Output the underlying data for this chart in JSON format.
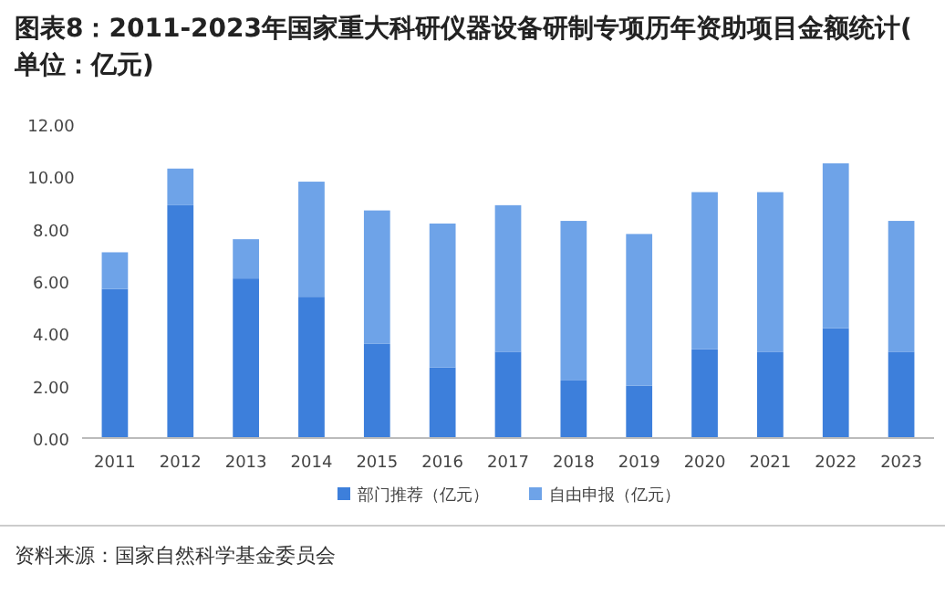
{
  "chart_data": {
    "type": "bar",
    "stacked": true,
    "title": "图表8：2011-2023年国家重大科研仪器设备研制专项历年资助项目金额统计(单位：亿元)",
    "categories": [
      "2011",
      "2012",
      "2013",
      "2014",
      "2015",
      "2016",
      "2017",
      "2018",
      "2019",
      "2020",
      "2021",
      "2022",
      "2023"
    ],
    "series": [
      {
        "name": "部门推荐（亿元）",
        "color": "#3d7fdb",
        "values": [
          5.7,
          8.9,
          6.1,
          5.4,
          3.6,
          2.7,
          3.3,
          2.2,
          2.0,
          3.4,
          3.3,
          4.2,
          3.3
        ]
      },
      {
        "name": "自由申报（亿元）",
        "color": "#6ea3e8",
        "values": [
          1.4,
          1.4,
          1.5,
          4.4,
          5.1,
          5.5,
          5.6,
          6.1,
          5.8,
          6.0,
          6.1,
          6.3,
          5.0
        ]
      }
    ],
    "ylim": [
      0,
      12
    ],
    "yticks": [
      {
        "value": 0,
        "label": "0.00"
      },
      {
        "value": 2,
        "label": "2.00"
      },
      {
        "value": 4,
        "label": "4.00"
      },
      {
        "value": 6,
        "label": "6.00"
      },
      {
        "value": 8,
        "label": "8.00"
      },
      {
        "value": 10,
        "label": "10.00"
      },
      {
        "value": 12,
        "label": "12.00"
      }
    ],
    "grid": false,
    "legend": "bottom",
    "annotations": [
      "资料来源：国家自然科学基金委员会"
    ]
  }
}
